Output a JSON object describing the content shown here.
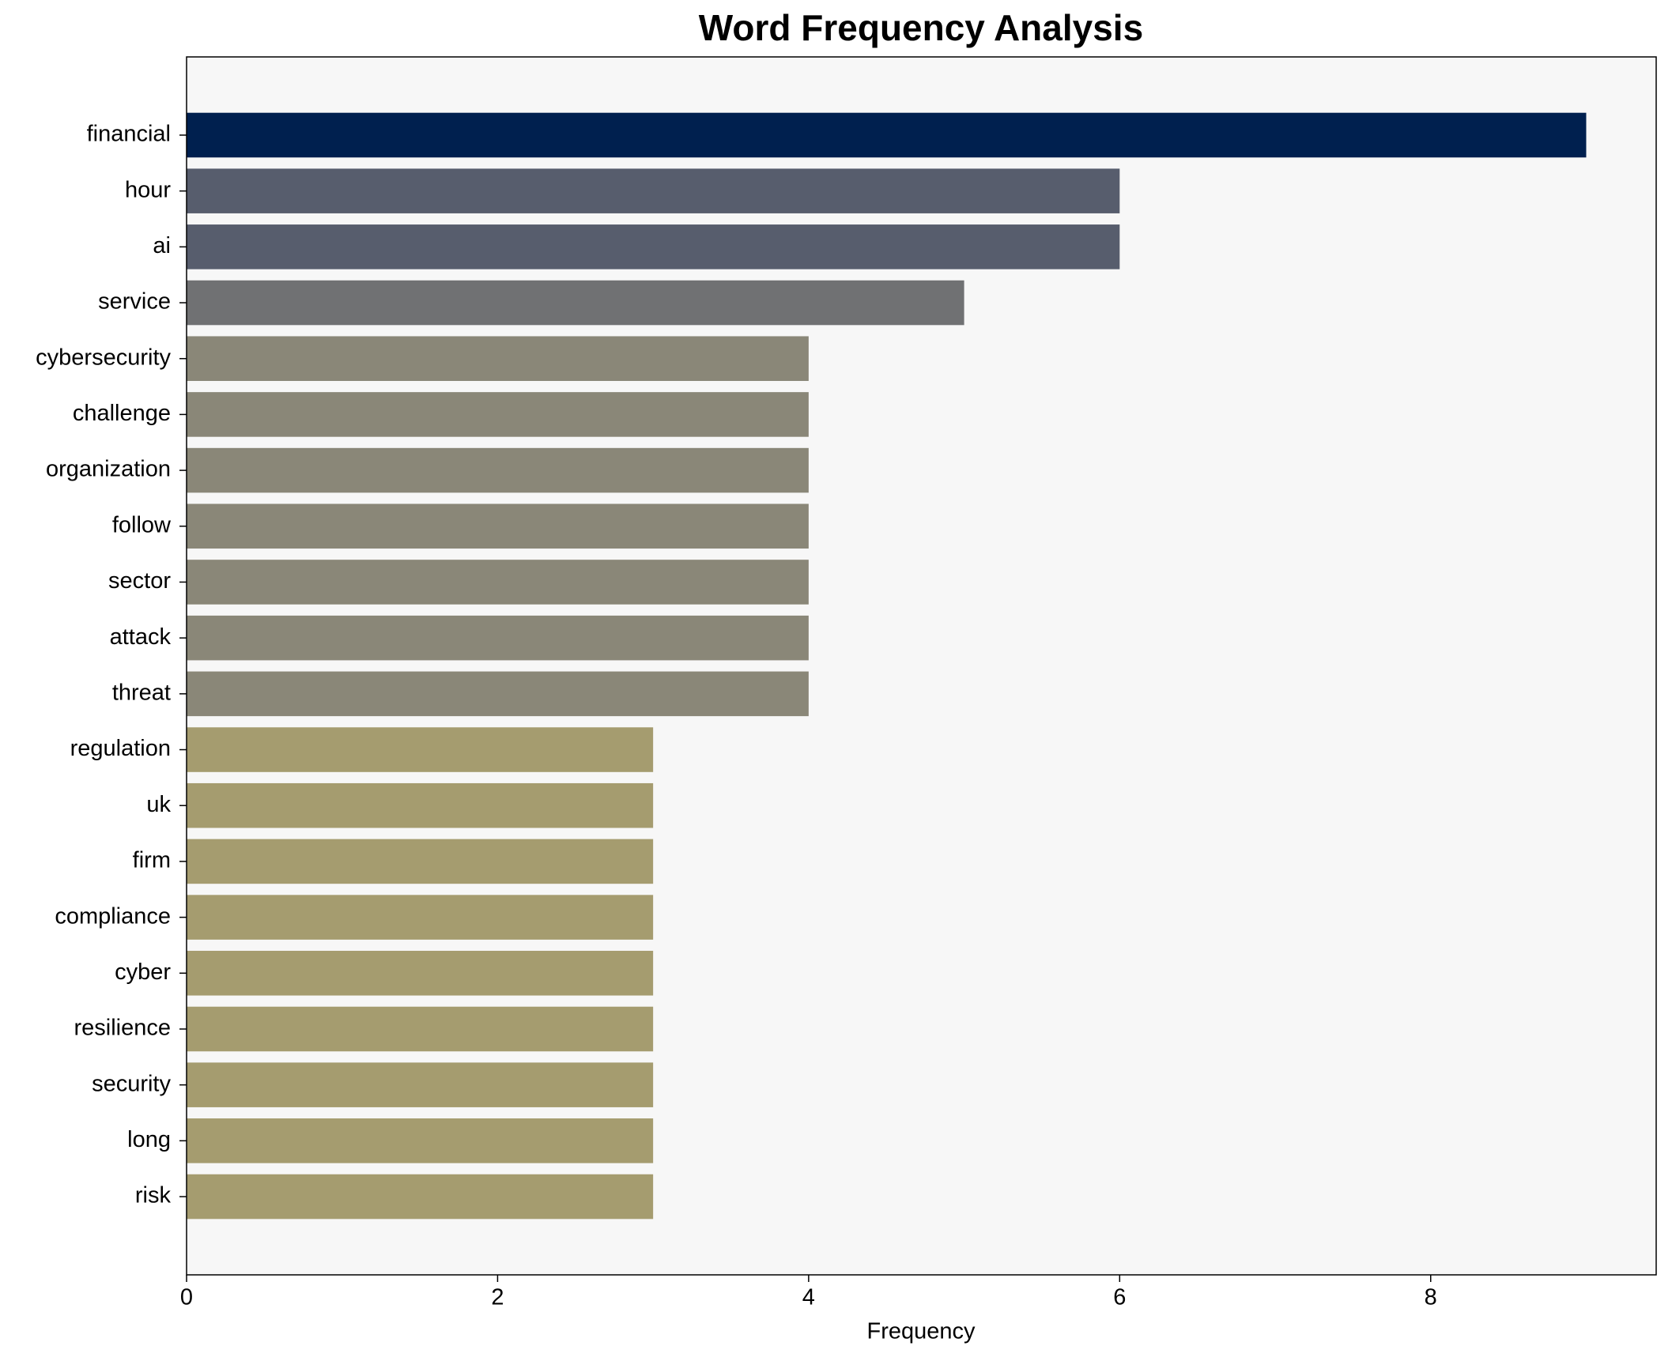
{
  "chart_data": {
    "type": "barh",
    "title": "Word Frequency Analysis",
    "xlabel": "Frequency",
    "categories": [
      "financial",
      "hour",
      "ai",
      "service",
      "cybersecurity",
      "challenge",
      "organization",
      "follow",
      "sector",
      "attack",
      "threat",
      "regulation",
      "uk",
      "firm",
      "compliance",
      "cyber",
      "resilience",
      "security",
      "long",
      "risk"
    ],
    "values": [
      9,
      6,
      6,
      5,
      4,
      4,
      4,
      4,
      4,
      4,
      4,
      3,
      3,
      3,
      3,
      3,
      3,
      3,
      3,
      3
    ],
    "colors": [
      "#00204f",
      "#575d6d",
      "#575d6d",
      "#707173",
      "#8a8778",
      "#8a8778",
      "#8a8778",
      "#8a8778",
      "#8a8778",
      "#8a8778",
      "#8a8778",
      "#a59c6f",
      "#a59c6f",
      "#a59c6f",
      "#a59c6f",
      "#a59c6f",
      "#a59c6f",
      "#a59c6f",
      "#a59c6f",
      "#a59c6f"
    ],
    "xlim": [
      0,
      9.45
    ],
    "xticks": [
      0,
      2,
      4,
      6,
      8
    ],
    "grid": false
  }
}
